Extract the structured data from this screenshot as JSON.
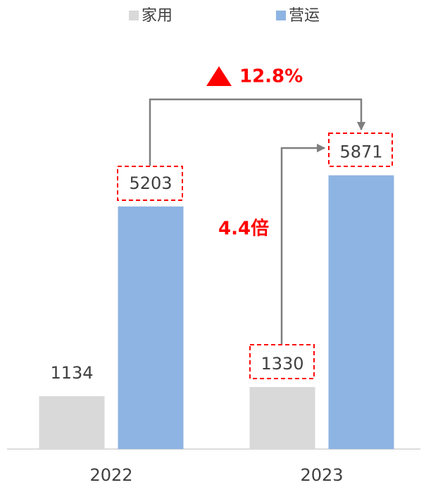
{
  "chart_data": {
    "type": "bar",
    "categories": [
      "2022",
      "2023"
    ],
    "series": [
      {
        "name": "家用",
        "color": "#d9d9d9",
        "values": [
          1134,
          1330
        ]
      },
      {
        "name": "营运",
        "color": "#8eb4e3",
        "values": [
          5203,
          5871
        ]
      }
    ],
    "ylim": [
      0,
      7000
    ],
    "annotations": [
      "12.8%",
      "4.4倍"
    ],
    "legend": "top"
  }
}
